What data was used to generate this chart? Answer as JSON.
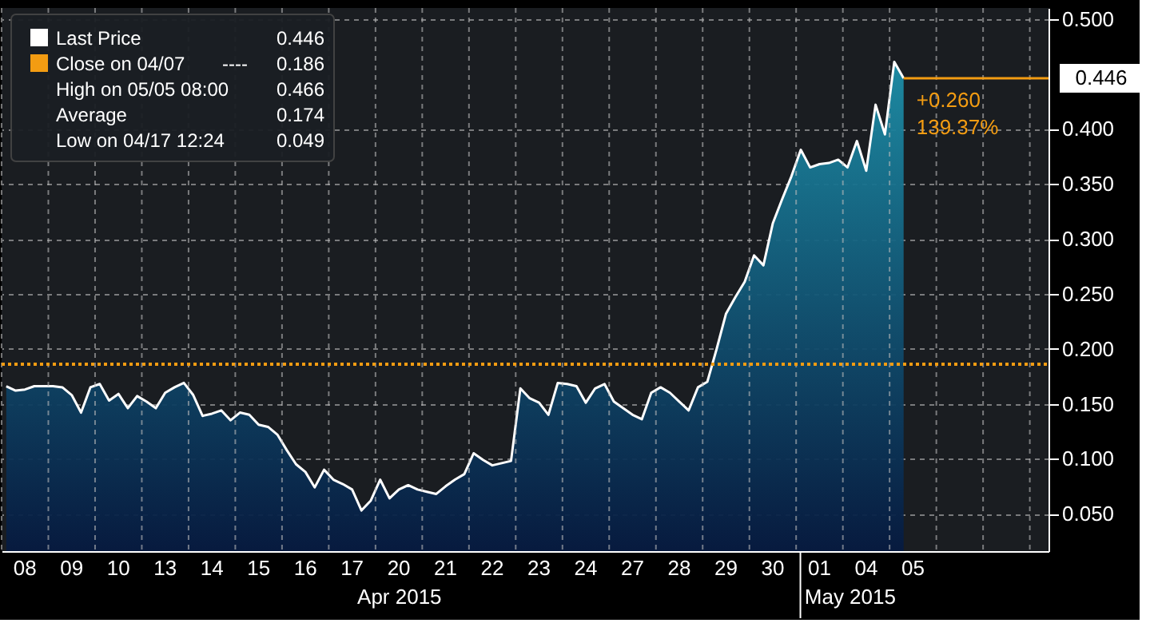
{
  "chart_data": {
    "type": "area",
    "categories": [
      null,
      null,
      "08",
      null,
      null,
      null,
      null,
      "09",
      null,
      null,
      null,
      null,
      "10",
      null,
      null,
      null,
      null,
      "13",
      null,
      null,
      null,
      null,
      "14",
      null,
      null,
      null,
      null,
      "15",
      null,
      null,
      null,
      null,
      "16",
      null,
      null,
      null,
      null,
      "17",
      null,
      null,
      null,
      null,
      "20",
      null,
      null,
      null,
      null,
      "21",
      null,
      null,
      null,
      null,
      "22",
      null,
      null,
      null,
      null,
      "23",
      null,
      null,
      null,
      null,
      "24",
      null,
      null,
      null,
      null,
      "27",
      null,
      null,
      null,
      null,
      "28",
      null,
      null,
      null,
      null,
      "29",
      null,
      null,
      null,
      null,
      "30",
      null,
      null,
      null,
      null,
      "01",
      null,
      null,
      null,
      null,
      "04",
      null,
      null,
      null,
      null,
      "05",
      null,
      null,
      null,
      null,
      null,
      null,
      null,
      null,
      null,
      null,
      null,
      null,
      null,
      null
    ],
    "series": [
      {
        "name": "Last Price",
        "color": "#ffffff",
        "values": [
          0.166,
          0.162,
          0.163,
          0.166,
          0.166,
          0.166,
          0.165,
          0.158,
          0.142,
          0.165,
          0.168,
          0.153,
          0.159,
          0.146,
          0.157,
          0.152,
          0.146,
          0.16,
          0.165,
          0.169,
          0.158,
          0.139,
          0.141,
          0.144,
          0.135,
          0.142,
          0.14,
          0.131,
          0.129,
          0.122,
          0.108,
          0.095,
          0.088,
          0.074,
          0.09,
          0.081,
          0.077,
          0.072,
          0.053,
          0.062,
          0.081,
          0.064,
          0.072,
          0.076,
          0.072,
          0.07,
          0.068,
          0.075,
          0.081,
          0.086,
          0.105,
          0.099,
          0.094,
          0.096,
          0.098,
          0.164,
          0.155,
          0.151,
          0.14,
          0.169,
          0.168,
          0.166,
          0.151,
          0.164,
          0.168,
          0.152,
          0.146,
          0.14,
          0.136,
          0.16,
          0.165,
          0.16,
          0.152,
          0.144,
          0.165,
          0.17,
          0.2,
          0.232,
          0.247,
          0.261,
          0.285,
          0.276,
          0.314,
          0.336,
          0.357,
          0.381,
          0.365,
          0.368,
          0.369,
          0.372,
          0.365,
          0.389,
          0.362,
          0.422,
          0.395,
          0.461,
          0.446,
          null,
          null,
          null,
          null,
          null,
          null,
          null,
          null,
          null,
          null,
          null,
          null,
          null,
          null,
          null
        ]
      }
    ],
    "ylim": [
      0.016,
      0.51
    ],
    "yticks": [
      {
        "value": 0.05,
        "label": "0.050"
      },
      {
        "value": 0.1,
        "label": "0.100"
      },
      {
        "value": 0.15,
        "label": "0.150"
      },
      {
        "value": 0.2,
        "label": "0.200"
      },
      {
        "value": 0.25,
        "label": "0.250"
      },
      {
        "value": 0.3,
        "label": "0.300"
      },
      {
        "value": 0.35,
        "label": "0.350"
      },
      {
        "value": 0.4,
        "label": "0.400"
      },
      {
        "value": 0.5,
        "label": "0.500"
      }
    ],
    "grid": true,
    "legend": "top left",
    "ref_lines": [
      {
        "axis": "y",
        "value": 0.186,
        "label": "Close on 04/07",
        "color": "#f39c12",
        "line_style": "dotted"
      },
      {
        "axis": "y",
        "value": 0.446,
        "label": "0.446",
        "color": "#f39c12",
        "line_style": "solid"
      }
    ],
    "annotations": [
      "Apr 2015",
      "May 2015",
      "+0.260",
      "139.37%",
      "0.446",
      "----",
      "0.186",
      "High on 05/05 08:00",
      "0.466",
      "Average",
      "0.174",
      "Low on 04/17 12:24",
      "0.049"
    ]
  }
}
